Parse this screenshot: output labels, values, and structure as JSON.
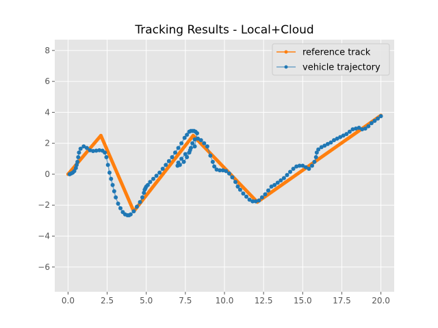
{
  "chart_data": {
    "type": "line",
    "title": "Tracking Results - Local+Cloud",
    "xlabel": "",
    "ylabel": "",
    "xlim": [
      -0.85,
      20.85
    ],
    "ylim": [
      -7.6,
      8.7
    ],
    "xticks": [
      0.0,
      2.5,
      5.0,
      7.5,
      10.0,
      12.5,
      15.0,
      17.5,
      20.0
    ],
    "xtick_labels": [
      "0.0",
      "2.5",
      "5.0",
      "7.5",
      "10.0",
      "12.5",
      "15.0",
      "17.5",
      "20.0"
    ],
    "yticks": [
      -6,
      -4,
      -2,
      0,
      2,
      4,
      6,
      8
    ],
    "ytick_labels": [
      "−6",
      "−4",
      "−2",
      "0",
      "2",
      "4",
      "6",
      "8"
    ],
    "grid": true,
    "legend_position": "top-right",
    "series": [
      {
        "name": "reference track",
        "color": "#ff7f0e",
        "marker": "circle",
        "x": [
          0.0,
          2.1,
          4.2,
          8.0,
          12.1,
          20.0
        ],
        "y": [
          0.0,
          2.5,
          -2.4,
          2.5,
          -1.8,
          3.8
        ]
      },
      {
        "name": "vehicle trajectory",
        "color": "#1f77b4",
        "marker": "circle",
        "x": [
          0.1,
          0.2,
          0.3,
          0.4,
          0.5,
          0.55,
          0.6,
          0.65,
          0.7,
          0.8,
          1.0,
          1.2,
          1.4,
          1.6,
          1.8,
          2.0,
          2.2,
          2.35,
          2.45,
          2.55,
          2.65,
          2.75,
          2.85,
          2.95,
          3.05,
          3.2,
          3.35,
          3.5,
          3.65,
          3.8,
          3.9,
          4.0,
          4.2,
          4.4,
          4.6,
          4.75,
          4.85,
          4.9,
          4.95,
          5.0,
          5.1,
          5.25,
          5.45,
          5.65,
          5.85,
          6.05,
          6.25,
          6.45,
          6.65,
          6.85,
          7.05,
          7.25,
          7.45,
          7.6,
          7.75,
          7.85,
          7.95,
          8.05,
          8.15,
          8.25,
          8.1,
          7.8,
          7.5,
          7.25,
          7.05,
          7.0,
          7.15,
          7.4,
          7.6,
          7.75,
          7.85,
          7.95,
          8.1,
          8.3,
          8.5,
          8.7,
          8.9,
          9.1,
          9.25,
          9.35,
          9.5,
          9.7,
          9.9,
          10.1,
          10.3,
          10.5,
          10.7,
          10.85,
          11.0,
          11.2,
          11.4,
          11.6,
          11.8,
          12.0,
          12.2,
          12.4,
          12.6,
          12.8,
          13.0,
          13.2,
          13.4,
          13.6,
          13.8,
          14.0,
          14.2,
          14.4,
          14.6,
          14.8,
          15.0,
          15.2,
          15.4,
          15.6,
          15.75,
          15.85,
          15.9,
          16.0,
          16.2,
          16.4,
          16.6,
          16.8,
          17.0,
          17.2,
          17.4,
          17.6,
          17.8,
          18.0,
          18.2,
          18.4,
          18.6,
          18.8,
          19.0,
          19.2,
          19.4,
          19.6,
          19.8,
          20.0
        ],
        "y": [
          0.0,
          0.05,
          0.1,
          0.2,
          0.4,
          0.6,
          0.8,
          1.1,
          1.4,
          1.65,
          1.8,
          1.7,
          1.55,
          1.5,
          1.52,
          1.55,
          1.52,
          1.4,
          1.1,
          0.6,
          0.1,
          -0.3,
          -0.7,
          -1.1,
          -1.5,
          -1.9,
          -2.2,
          -2.45,
          -2.6,
          -2.65,
          -2.65,
          -2.6,
          -2.4,
          -2.1,
          -1.8,
          -1.5,
          -1.2,
          -1.0,
          -0.9,
          -0.8,
          -0.7,
          -0.5,
          -0.3,
          -0.1,
          0.1,
          0.35,
          0.6,
          0.85,
          1.1,
          1.4,
          1.7,
          2.0,
          2.35,
          2.55,
          2.75,
          2.8,
          2.8,
          2.8,
          2.75,
          2.65,
          1.8,
          1.55,
          1.3,
          1.0,
          0.75,
          0.55,
          0.6,
          0.8,
          1.1,
          1.4,
          1.7,
          2.0,
          2.25,
          2.3,
          2.2,
          2.0,
          1.8,
          1.2,
          0.8,
          0.5,
          0.3,
          0.25,
          0.25,
          0.2,
          0.05,
          -0.2,
          -0.5,
          -0.8,
          -1.0,
          -1.25,
          -1.45,
          -1.65,
          -1.75,
          -1.75,
          -1.7,
          -1.5,
          -1.3,
          -1.05,
          -0.8,
          -0.7,
          -0.55,
          -0.4,
          -0.25,
          -0.05,
          0.15,
          0.35,
          0.5,
          0.55,
          0.55,
          0.45,
          0.35,
          0.55,
          0.8,
          1.1,
          1.4,
          1.6,
          1.75,
          1.85,
          1.95,
          2.05,
          2.2,
          2.3,
          2.4,
          2.5,
          2.6,
          2.75,
          2.9,
          2.95,
          3.0,
          2.9,
          2.95,
          3.1,
          3.3,
          3.45,
          3.6,
          3.75
        ]
      }
    ]
  }
}
